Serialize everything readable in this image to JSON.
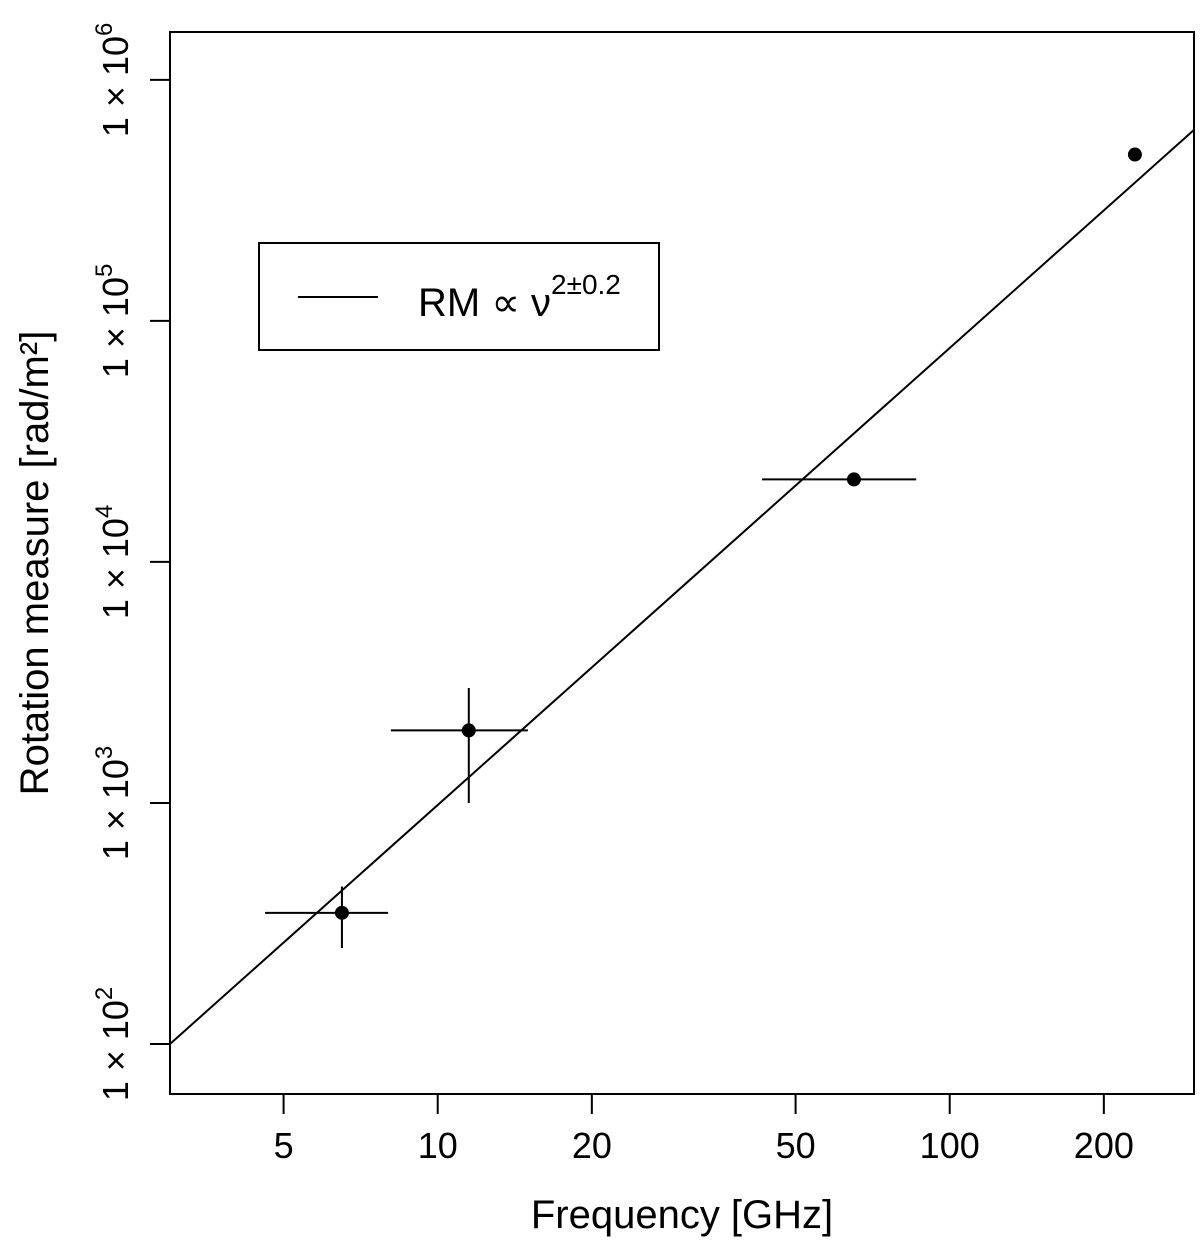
{
  "chart_data": {
    "type": "scatter",
    "xlabel": "Frequency [GHz]",
    "ylabel": "Rotation measure [rad/m²]",
    "xscale": "log",
    "yscale": "log",
    "xlim": [
      3.0,
      300.0
    ],
    "ylim": [
      62.0,
      1580000.0
    ],
    "xticks": [
      {
        "value": 5,
        "label": "5"
      },
      {
        "value": 10,
        "label": "10"
      },
      {
        "value": 20,
        "label": "20"
      },
      {
        "value": 50,
        "label": "50"
      },
      {
        "value": 100,
        "label": "100"
      },
      {
        "value": 200,
        "label": "200"
      }
    ],
    "yticks": [
      {
        "value": 100,
        "mantissa": "1 × 10",
        "exponent": "2"
      },
      {
        "value": 1000,
        "mantissa": "1 × 10",
        "exponent": "3"
      },
      {
        "value": 10000,
        "mantissa": "1 × 10",
        "exponent": "4"
      },
      {
        "value": 100000,
        "mantissa": "1 × 10",
        "exponent": "5"
      },
      {
        "value": 1000000,
        "mantissa": "1 × 10",
        "exponent": "6"
      }
    ],
    "points": [
      {
        "x": 6.5,
        "y": 350,
        "xerr": [
          4.6,
          8.0
        ],
        "yerr": [
          250,
          450
        ]
      },
      {
        "x": 11.5,
        "y": 2000,
        "xerr": [
          8.1,
          15.0
        ],
        "yerr": [
          1000,
          3000
        ]
      },
      {
        "x": 65,
        "y": 22000,
        "xerr": [
          43,
          86
        ],
        "yerr": [
          21000,
          23000
        ]
      },
      {
        "x": 230,
        "y": 490000,
        "xerr": [
          225,
          235
        ],
        "yerr": [
          480000,
          500000
        ]
      }
    ],
    "fit": {
      "x": [
        3.0,
        300.0
      ],
      "y": [
        100,
        620000
      ]
    },
    "legend": {
      "position": "top-left",
      "label_main": "RM ∝ ν",
      "label_sup": "2±0.2"
    },
    "grid": false
  }
}
